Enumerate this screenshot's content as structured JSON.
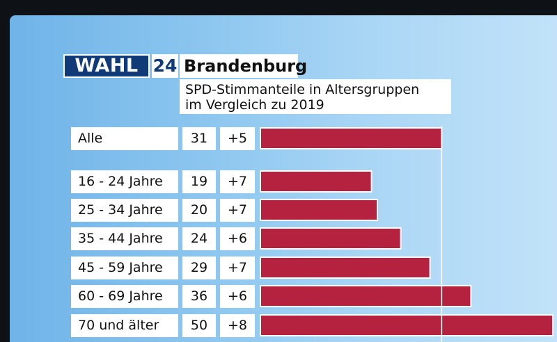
{
  "header": {
    "logo_wahl": "WAHL",
    "logo_24": "24",
    "region": "Brandenburg",
    "subtitle_line1": "SPD-Stimmanteile in Altersgruppen",
    "subtitle_line2": "im Vergleich zu 2019"
  },
  "colors": {
    "bar": "#b5223f",
    "bar_border": "#ffffff",
    "logo_blue": "#103a78"
  },
  "chart_data": {
    "type": "bar",
    "orientation": "horizontal",
    "title": "SPD-Stimmanteile in Altersgruppen im Vergleich zu 2019",
    "categories": [
      "Alle",
      "16 - 24 Jahre",
      "25 - 34 Jahre",
      "35 - 44 Jahre",
      "45 - 59 Jahre",
      "60 - 69 Jahre",
      "70 und älter"
    ],
    "values": [
      31,
      19,
      20,
      24,
      29,
      36,
      50
    ],
    "changes": [
      "+5",
      "+7",
      "+7",
      "+6",
      "+7",
      "+6",
      "+8"
    ],
    "reference_line": 31,
    "xlim": [
      0,
      50
    ]
  }
}
